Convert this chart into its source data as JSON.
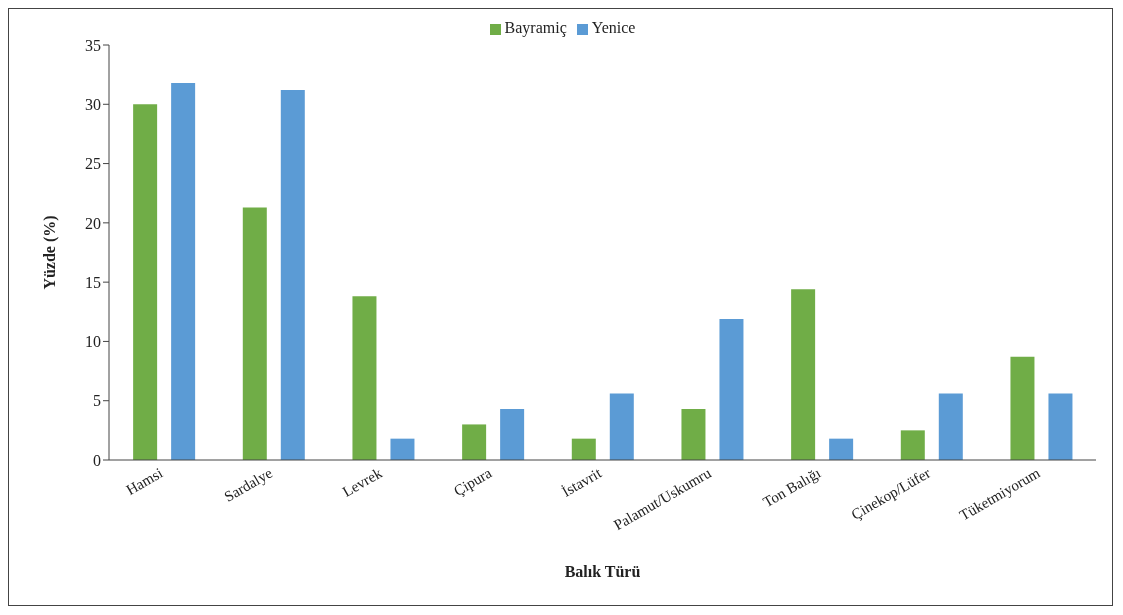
{
  "chart_data": {
    "type": "bar",
    "xlabel": "Balık Türü",
    "ylabel": "Yüzde (%)",
    "categories": [
      "Hamsi",
      "Sardalye",
      "Levrek",
      "Çipura",
      "İstavrit",
      "Palamut/Uskumru",
      "Ton Balığı",
      "Çinekop/Lüfer",
      "Tüketmiyorum"
    ],
    "series": [
      {
        "name": "Bayramiç",
        "color": "#70ad47",
        "values": [
          30,
          21.3,
          13.8,
          3,
          1.8,
          4.3,
          14.4,
          2.5,
          8.7
        ]
      },
      {
        "name": "Yenice",
        "color": "#5b9bd5",
        "values": [
          31.8,
          31.2,
          1.8,
          4.3,
          5.6,
          11.9,
          1.8,
          5.6,
          5.6
        ]
      }
    ],
    "ylim": [
      0,
      35
    ],
    "yticks": [
      0,
      5,
      10,
      15,
      20,
      25,
      30,
      35
    ],
    "grid": false,
    "legend": "top"
  }
}
